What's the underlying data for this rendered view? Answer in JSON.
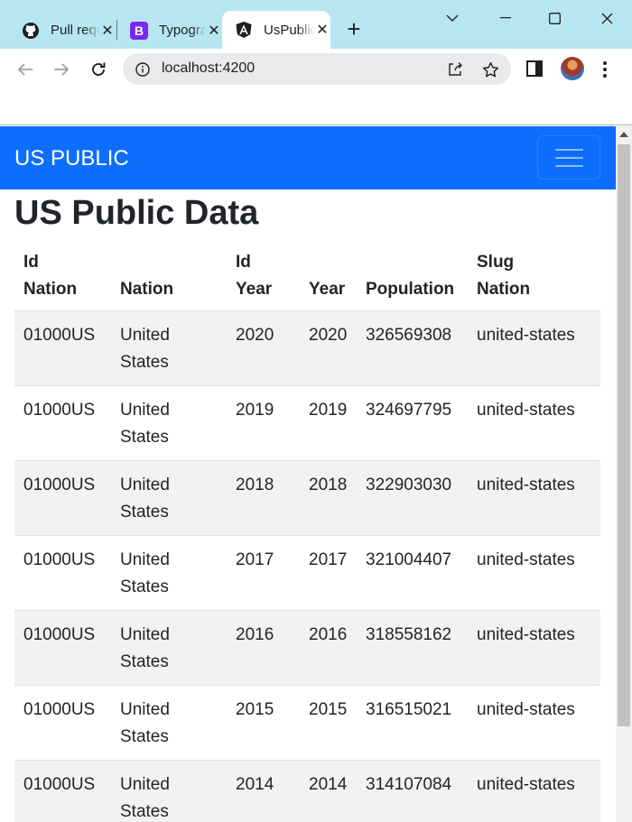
{
  "browser": {
    "tabs": [
      {
        "title": "Pull requests",
        "icon": "github-icon",
        "active": false
      },
      {
        "title": "Typography",
        "icon": "bootstrap-icon",
        "active": false
      },
      {
        "title": "UsPublic",
        "icon": "angular-icon",
        "active": true
      }
    ],
    "close_glyph": "✕",
    "new_tab_glyph": "+",
    "url": "localhost:4200"
  },
  "app": {
    "brand": "US PUBLIC",
    "page_title": "US Public Data",
    "table": {
      "headers": [
        {
          "line1": "Id",
          "line2": "Nation"
        },
        {
          "line1": "",
          "line2": "Nation"
        },
        {
          "line1": "Id",
          "line2": "Year"
        },
        {
          "line1": "",
          "line2": "Year"
        },
        {
          "line1": "",
          "line2": "Population"
        },
        {
          "line1": "Slug",
          "line2": "Nation"
        }
      ],
      "rows": [
        {
          "id_nation": "01000US",
          "nation": "United States",
          "id_year": "2020",
          "year": "2020",
          "population": "326569308",
          "slug_nation": "united-states"
        },
        {
          "id_nation": "01000US",
          "nation": "United States",
          "id_year": "2019",
          "year": "2019",
          "population": "324697795",
          "slug_nation": "united-states"
        },
        {
          "id_nation": "01000US",
          "nation": "United States",
          "id_year": "2018",
          "year": "2018",
          "population": "322903030",
          "slug_nation": "united-states"
        },
        {
          "id_nation": "01000US",
          "nation": "United States",
          "id_year": "2017",
          "year": "2017",
          "population": "321004407",
          "slug_nation": "united-states"
        },
        {
          "id_nation": "01000US",
          "nation": "United States",
          "id_year": "2016",
          "year": "2016",
          "population": "318558162",
          "slug_nation": "united-states"
        },
        {
          "id_nation": "01000US",
          "nation": "United States",
          "id_year": "2015",
          "year": "2015",
          "population": "316515021",
          "slug_nation": "united-states"
        },
        {
          "id_nation": "01000US",
          "nation": "United States",
          "id_year": "2014",
          "year": "2014",
          "population": "314107084",
          "slug_nation": "united-states"
        }
      ]
    }
  },
  "colors": {
    "tabstrip": "#b7e6f2",
    "navbar": "#0d6efd",
    "striped_row": "#f2f2f2",
    "text": "#212529"
  }
}
